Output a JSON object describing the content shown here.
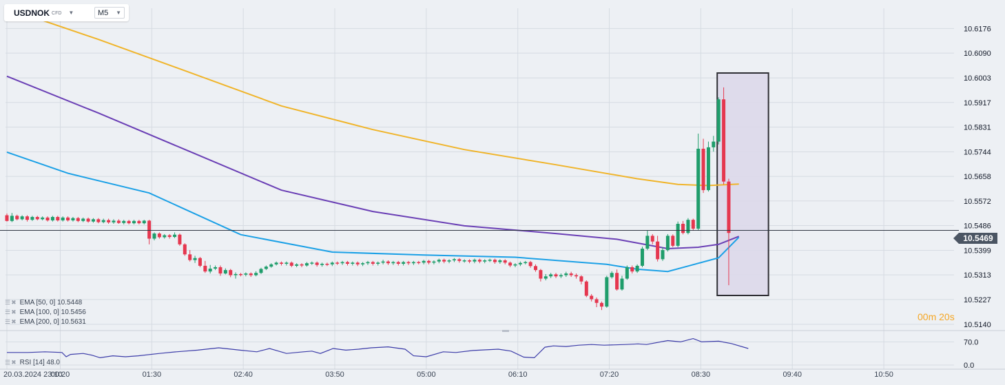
{
  "symbol": {
    "name": "USDNOK",
    "type": "CFD"
  },
  "timeframe": "M5",
  "indicators": [
    {
      "label": "EMA [50,  0] 10.5448",
      "color": "#1aa0e6"
    },
    {
      "label": "EMA [100,  0] 10.5456",
      "color": "#6a3fb5"
    },
    {
      "label": "EMA [200,  0] 10.5631",
      "color": "#f0b429"
    }
  ],
  "rsi_label": "RSI [14] 48.0",
  "current_price": "10.5469",
  "countdown": {
    "min": "00",
    "min_unit": "m",
    "sec": "20",
    "sec_unit": "s"
  },
  "colors": {
    "up": "#1f9d6b",
    "down": "#e5374f",
    "ema50": "#1aa0e6",
    "ema100": "#6a3fb5",
    "ema200": "#f0b429",
    "rsi": "#3b3ba8",
    "highlight_fill": "#dcd8ea"
  },
  "chart_data": {
    "type": "candlestick",
    "y_ticks": [
      "10.6176",
      "10.6090",
      "10.6003",
      "10.5917",
      "10.5831",
      "10.5744",
      "10.5658",
      "10.5572",
      "10.5486",
      "10.5399",
      "10.5313",
      "10.5227",
      "10.5140"
    ],
    "ylim": [
      10.5118,
      10.6247
    ],
    "x_ticks": [
      {
        "label": "20.03.2024  23:10",
        "slot": 0
      },
      {
        "label": "00:20",
        "slot": 10.5
      },
      {
        "label": "01:30",
        "slot": 28.5
      },
      {
        "label": "02:40",
        "slot": 46.5
      },
      {
        "label": "03:50",
        "slot": 64.5
      },
      {
        "label": "05:00",
        "slot": 82.5
      },
      {
        "label": "06:10",
        "slot": 100.5
      },
      {
        "label": "07:20",
        "slot": 118.5
      },
      {
        "label": "08:30",
        "slot": 136.5
      },
      {
        "label": "09:40",
        "slot": 154.5
      },
      {
        "label": "10:50",
        "slot": 172.5
      }
    ],
    "candles": [
      [
        10.5522,
        10.5502,
        10.5528,
        10.55
      ],
      [
        10.5502,
        10.552,
        10.553,
        10.5498
      ],
      [
        10.552,
        10.5508,
        10.5524,
        10.5504
      ],
      [
        10.5508,
        10.5518,
        10.5522,
        10.5504
      ],
      [
        10.5518,
        10.5506,
        10.5522,
        10.55
      ],
      [
        10.5506,
        10.5516,
        10.552,
        10.5502
      ],
      [
        10.5516,
        10.5508,
        10.552,
        10.5504
      ],
      [
        10.5508,
        10.5514,
        10.5518,
        10.5504
      ],
      [
        10.5514,
        10.5504,
        10.5518,
        10.55
      ],
      [
        10.5504,
        10.5516,
        10.552,
        10.55
      ],
      [
        10.5516,
        10.5504,
        10.552,
        10.55
      ],
      [
        10.5504,
        10.5514,
        10.5518,
        10.55
      ],
      [
        10.5514,
        10.5504,
        10.5518,
        10.55
      ],
      [
        10.5504,
        10.5512,
        10.5516,
        10.55
      ],
      [
        10.5512,
        10.5502,
        10.5516,
        10.5498
      ],
      [
        10.5502,
        10.551,
        10.5514,
        10.5498
      ],
      [
        10.551,
        10.55,
        10.5514,
        10.5496
      ],
      [
        10.55,
        10.5508,
        10.5512,
        10.5496
      ],
      [
        10.5508,
        10.5498,
        10.5512,
        10.5494
      ],
      [
        10.5498,
        10.5505,
        10.551,
        10.5494
      ],
      [
        10.5505,
        10.5497,
        10.551,
        10.5492
      ],
      [
        10.5497,
        10.5503,
        10.5508,
        10.5492
      ],
      [
        10.5503,
        10.5495,
        10.5508,
        10.5492
      ],
      [
        10.5495,
        10.5502,
        10.5506,
        10.549
      ],
      [
        10.5502,
        10.5494,
        10.5506,
        10.549
      ],
      [
        10.5494,
        10.5502,
        10.5506,
        10.549
      ],
      [
        10.5502,
        10.5494,
        10.5506,
        10.549
      ],
      [
        10.5494,
        10.5503,
        10.5506,
        10.549
      ],
      [
        10.5503,
        10.544,
        10.5506,
        10.542
      ],
      [
        10.544,
        10.5458,
        10.5462,
        10.5434
      ],
      [
        10.5458,
        10.5445,
        10.5462,
        10.544
      ],
      [
        10.5445,
        10.5452,
        10.5456,
        10.544
      ],
      [
        10.5452,
        10.5446,
        10.5456,
        10.544
      ],
      [
        10.5446,
        10.5454,
        10.5462,
        10.5442
      ],
      [
        10.5454,
        10.542,
        10.5458,
        10.5415
      ],
      [
        10.542,
        10.5385,
        10.5424,
        10.538
      ],
      [
        10.5385,
        10.5365,
        10.54,
        10.536
      ],
      [
        10.5365,
        10.5372,
        10.538,
        10.5355
      ],
      [
        10.5372,
        10.5345,
        10.5376,
        10.534
      ],
      [
        10.5345,
        10.5325,
        10.5362,
        10.532
      ],
      [
        10.5325,
        10.5335,
        10.5348,
        10.5318
      ],
      [
        10.5335,
        10.534,
        10.5346,
        10.533
      ],
      [
        10.534,
        10.5318,
        10.5346,
        10.531
      ],
      [
        10.5318,
        10.533,
        10.5336,
        10.5315
      ],
      [
        10.533,
        10.5312,
        10.5334,
        10.5305
      ],
      [
        10.5312,
        10.5316,
        10.5322,
        10.53
      ],
      [
        10.5316,
        10.5314,
        10.532,
        10.5308
      ],
      [
        10.5314,
        10.5318,
        10.5322,
        10.5308
      ],
      [
        10.5318,
        10.5312,
        10.5322,
        10.5306
      ],
      [
        10.5312,
        10.532,
        10.5326,
        10.5308
      ],
      [
        10.532,
        10.5334,
        10.5338,
        10.5316
      ],
      [
        10.5334,
        10.5342,
        10.5346,
        10.533
      ],
      [
        10.5342,
        10.535,
        10.5354,
        10.5338
      ],
      [
        10.535,
        10.5356,
        10.536,
        10.5346
      ],
      [
        10.5356,
        10.5352,
        10.536,
        10.5346
      ],
      [
        10.5352,
        10.5356,
        10.536,
        10.5346
      ],
      [
        10.5356,
        10.5345,
        10.536,
        10.534
      ],
      [
        10.5345,
        10.535,
        10.5354,
        10.534
      ],
      [
        10.535,
        10.5346,
        10.5354,
        10.534
      ],
      [
        10.5346,
        10.5354,
        10.5358,
        10.5342
      ],
      [
        10.5354,
        10.5356,
        10.536,
        10.5348
      ],
      [
        10.5356,
        10.5348,
        10.536,
        10.5342
      ],
      [
        10.5348,
        10.5352,
        10.5356,
        10.5342
      ],
      [
        10.5352,
        10.535,
        10.5356,
        10.5344
      ],
      [
        10.535,
        10.5356,
        10.536,
        10.5344
      ],
      [
        10.5356,
        10.5354,
        10.536,
        10.5348
      ],
      [
        10.5354,
        10.5358,
        10.5362,
        10.5348
      ],
      [
        10.5358,
        10.5352,
        10.5362,
        10.5346
      ],
      [
        10.5352,
        10.5356,
        10.536,
        10.5346
      ],
      [
        10.5356,
        10.535,
        10.536,
        10.5344
      ],
      [
        10.535,
        10.5354,
        10.5358,
        10.5344
      ],
      [
        10.5354,
        10.5358,
        10.5362,
        10.5348
      ],
      [
        10.5358,
        10.5352,
        10.5362,
        10.5346
      ],
      [
        10.5352,
        10.5356,
        10.536,
        10.5346
      ],
      [
        10.5356,
        10.536,
        10.5366,
        10.535
      ],
      [
        10.536,
        10.5354,
        10.5364,
        10.5348
      ],
      [
        10.5354,
        10.5358,
        10.5362,
        10.5348
      ],
      [
        10.5358,
        10.5352,
        10.5362,
        10.5346
      ],
      [
        10.5352,
        10.5358,
        10.5362,
        10.5346
      ],
      [
        10.5358,
        10.5354,
        10.5362,
        10.5348
      ],
      [
        10.5354,
        10.5358,
        10.5362,
        10.5348
      ],
      [
        10.5358,
        10.5356,
        10.5362,
        10.535
      ],
      [
        10.5356,
        10.5362,
        10.5366,
        10.535
      ],
      [
        10.5362,
        10.5356,
        10.5366,
        10.535
      ],
      [
        10.5356,
        10.536,
        10.5364,
        10.535
      ],
      [
        10.536,
        10.5366,
        10.537,
        10.5354
      ],
      [
        10.5366,
        10.536,
        10.537,
        10.5354
      ],
      [
        10.536,
        10.5364,
        10.5368,
        10.5354
      ],
      [
        10.5364,
        10.5368,
        10.5372,
        10.5358
      ],
      [
        10.5368,
        10.5362,
        10.5372,
        10.5356
      ],
      [
        10.5362,
        10.5364,
        10.5368,
        10.5356
      ],
      [
        10.5364,
        10.536,
        10.5368,
        10.5354
      ],
      [
        10.536,
        10.5366,
        10.537,
        10.5354
      ],
      [
        10.5366,
        10.536,
        10.537,
        10.5354
      ],
      [
        10.536,
        10.5364,
        10.5368,
        10.5354
      ],
      [
        10.5364,
        10.5366,
        10.537,
        10.5358
      ],
      [
        10.5366,
        10.5358,
        10.537,
        10.5352
      ],
      [
        10.5358,
        10.5364,
        10.5368,
        10.5352
      ],
      [
        10.5364,
        10.5356,
        10.5368,
        10.535
      ],
      [
        10.5356,
        10.5346,
        10.536,
        10.534
      ],
      [
        10.5346,
        10.535,
        10.5354,
        10.534
      ],
      [
        10.535,
        10.5355,
        10.536,
        10.5344
      ],
      [
        10.5355,
        10.5358,
        10.5362,
        10.535
      ],
      [
        10.5358,
        10.5344,
        10.5362,
        10.5338
      ],
      [
        10.5344,
        10.533,
        10.535,
        10.5324
      ],
      [
        10.533,
        10.53,
        10.5334,
        10.529
      ],
      [
        10.53,
        10.5308,
        10.5316,
        10.5294
      ],
      [
        10.5308,
        10.5315,
        10.532,
        10.5302
      ],
      [
        10.5315,
        10.5308,
        10.532,
        10.5302
      ],
      [
        10.5308,
        10.5312,
        10.5318,
        10.5302
      ],
      [
        10.5312,
        10.5318,
        10.5324,
        10.5306
      ],
      [
        10.5318,
        10.5312,
        10.5324,
        10.5306
      ],
      [
        10.5312,
        10.5308,
        10.5318,
        10.53
      ],
      [
        10.5308,
        10.529,
        10.5312,
        10.528
      ],
      [
        10.529,
        10.524,
        10.5294,
        10.5235
      ],
      [
        10.524,
        10.5228,
        10.5246,
        10.522
      ],
      [
        10.5228,
        10.5215,
        10.5234,
        10.52
      ],
      [
        10.5215,
        10.5202,
        10.522,
        10.519
      ],
      [
        10.5202,
        10.5305,
        10.531,
        10.5198
      ],
      [
        10.5305,
        10.532,
        10.5326,
        10.53
      ],
      [
        10.532,
        10.5262,
        10.5332,
        10.5258
      ],
      [
        10.5262,
        10.53,
        10.531,
        10.5258
      ],
      [
        10.53,
        10.534,
        10.5346,
        10.5296
      ],
      [
        10.534,
        10.5325,
        10.5346,
        10.5318
      ],
      [
        10.5325,
        10.5345,
        10.535,
        10.532
      ],
      [
        10.5345,
        10.5405,
        10.5412,
        10.534
      ],
      [
        10.5405,
        10.545,
        10.547,
        10.54
      ],
      [
        10.545,
        10.543,
        10.5456,
        10.542
      ],
      [
        10.543,
        10.5368,
        10.545,
        10.536
      ],
      [
        10.5368,
        10.54,
        10.541,
        10.5362
      ],
      [
        10.54,
        10.545,
        10.5456,
        10.5395
      ],
      [
        10.545,
        10.5415,
        10.5455,
        10.541
      ],
      [
        10.5415,
        10.5492,
        10.55,
        10.541
      ],
      [
        10.5492,
        10.546,
        10.5502,
        10.5455
      ],
      [
        10.546,
        10.5506,
        10.5512,
        10.5455
      ],
      [
        10.5506,
        10.5475,
        10.551,
        10.547
      ],
      [
        10.5475,
        10.5755,
        10.5808,
        10.547
      ],
      [
        10.5755,
        10.561,
        10.579,
        10.56
      ],
      [
        10.561,
        10.576,
        10.578,
        10.5605
      ],
      [
        10.576,
        10.578,
        10.58,
        10.5745
      ],
      [
        10.578,
        10.5928,
        10.5935,
        10.577
      ],
      [
        10.5928,
        10.564,
        10.597,
        10.563
      ],
      [
        10.564,
        10.546,
        10.565,
        10.5277
      ]
    ],
    "ema50": [
      [
        0,
        10.5743
      ],
      [
        12,
        10.5669
      ],
      [
        28,
        10.56
      ],
      [
        46,
        10.5454
      ],
      [
        64,
        10.5393
      ],
      [
        82,
        10.5383
      ],
      [
        100,
        10.5375
      ],
      [
        118,
        10.535
      ],
      [
        124,
        10.5333
      ],
      [
        130,
        10.5325
      ],
      [
        134,
        10.5344
      ],
      [
        140,
        10.5373
      ],
      [
        144,
        10.5445
      ]
    ],
    "ema100": [
      [
        0,
        10.6009
      ],
      [
        18,
        10.588
      ],
      [
        36,
        10.5745
      ],
      [
        54,
        10.561
      ],
      [
        72,
        10.5535
      ],
      [
        90,
        10.5485
      ],
      [
        108,
        10.5458
      ],
      [
        120,
        10.5438
      ],
      [
        130,
        10.5405
      ],
      [
        136,
        10.541
      ],
      [
        140,
        10.542
      ],
      [
        144,
        10.5448
      ]
    ],
    "ema200": [
      [
        0,
        10.6247
      ],
      [
        18,
        10.6138
      ],
      [
        36,
        10.6022
      ],
      [
        54,
        10.5905
      ],
      [
        72,
        10.5822
      ],
      [
        90,
        10.5752
      ],
      [
        108,
        10.5699
      ],
      [
        124,
        10.565
      ],
      [
        132,
        10.563
      ],
      [
        138,
        10.5626
      ],
      [
        144,
        10.5631
      ]
    ],
    "highlight": {
      "from_slot": 140,
      "to_slot": 149
    },
    "rsi": {
      "y_ticks": [
        "70.0",
        "0.0"
      ],
      "ylim": [
        0,
        100
      ],
      "values": [
        [
          0,
          38
        ],
        [
          10,
          38
        ],
        [
          18,
          40
        ],
        [
          26,
          38
        ],
        [
          28,
          25
        ],
        [
          30,
          32
        ],
        [
          36,
          35
        ],
        [
          40,
          30
        ],
        [
          44,
          22
        ],
        [
          50,
          28
        ],
        [
          56,
          25
        ],
        [
          62,
          28
        ],
        [
          72,
          35
        ],
        [
          80,
          40
        ],
        [
          90,
          45
        ],
        [
          100,
          52
        ],
        [
          110,
          45
        ],
        [
          118,
          40
        ],
        [
          124,
          50
        ],
        [
          132,
          35
        ],
        [
          140,
          40
        ],
        [
          144,
          42
        ],
        [
          148,
          35
        ],
        [
          154,
          50
        ],
        [
          160,
          45
        ],
        [
          166,
          48
        ],
        [
          172,
          52
        ],
        [
          180,
          55
        ],
        [
          188,
          48
        ],
        [
          192,
          28
        ],
        [
          198,
          25
        ],
        [
          206,
          40
        ],
        [
          212,
          38
        ],
        [
          220,
          44
        ],
        [
          232,
          48
        ],
        [
          238,
          42
        ],
        [
          244,
          24
        ],
        [
          249,
          22
        ],
        [
          254,
          54
        ],
        [
          258,
          58
        ],
        [
          264,
          56
        ],
        [
          270,
          60
        ],
        [
          276,
          62
        ],
        [
          282,
          60
        ],
        [
          292,
          62
        ],
        [
          298,
          64
        ],
        [
          302,
          62
        ],
        [
          312,
          74
        ],
        [
          318,
          70
        ],
        [
          324,
          80
        ],
        [
          328,
          70
        ],
        [
          336,
          72
        ],
        [
          342,
          65
        ],
        [
          350,
          50
        ]
      ]
    }
  }
}
